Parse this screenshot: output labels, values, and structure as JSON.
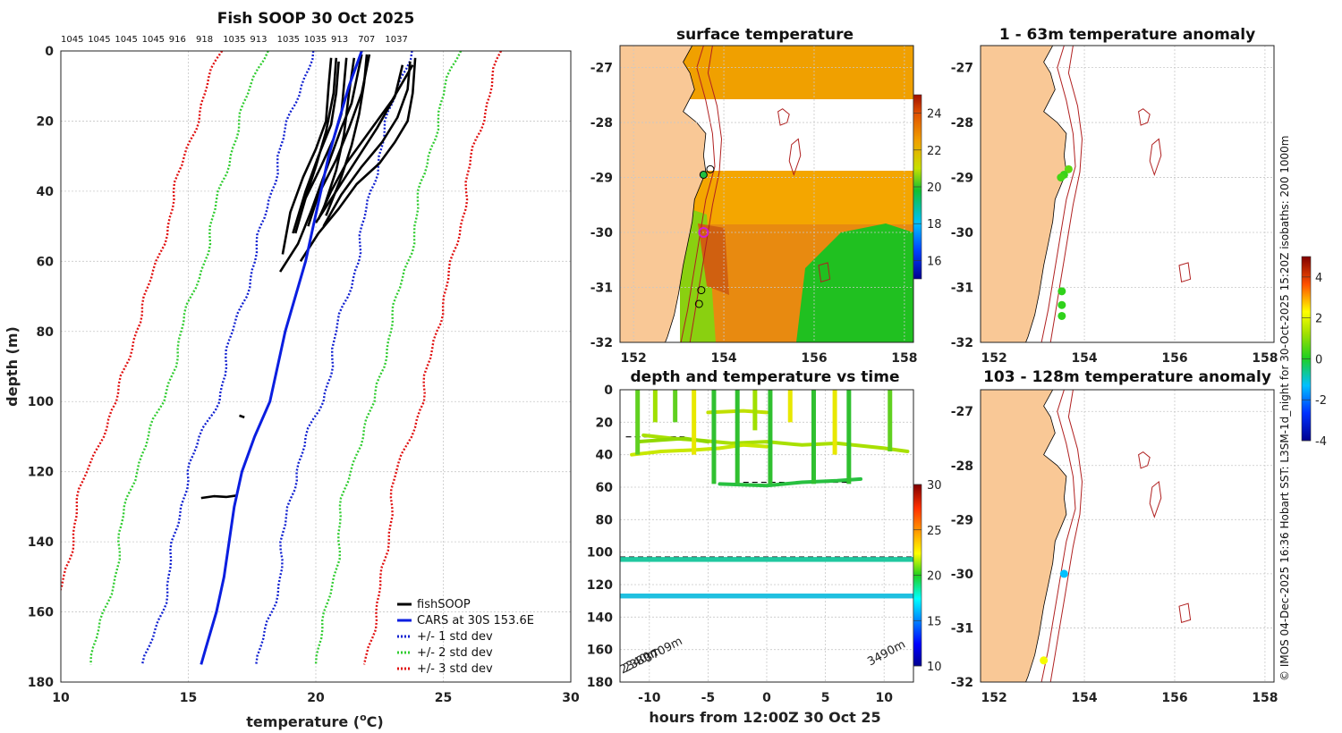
{
  "figure": {
    "credit": "© IMOS 04-Dec-2025 16:36 Hobart SST: L3SM-1d_night for 30-Oct-2025 15:20Z isobaths: 200  1000m",
    "colors": {
      "land": "#f9c896",
      "contour": "#b02020",
      "fish": "#000000",
      "cars": "#0a1ee0",
      "sd1": "#1020d0",
      "sd2": "#30cc30",
      "sd3": "#e01010"
    }
  },
  "chart_data": [
    {
      "id": "profile",
      "type": "line",
      "title": "Fish SOOP 30 Oct 2025",
      "xlabel": "temperature (°C)",
      "xlabel_parts": {
        "pre": "temperature (",
        "sup": "o",
        "post": "C)"
      },
      "ylabel": "depth (m)",
      "xlim": [
        10,
        30
      ],
      "ylim": [
        180,
        0
      ],
      "xticks": [
        10,
        15,
        20,
        25,
        30
      ],
      "yticks": [
        0,
        20,
        40,
        60,
        80,
        100,
        120,
        140,
        160,
        180
      ],
      "top_labels": [
        "1045",
        "1045",
        "1045",
        "1045",
        "916",
        "918",
        "1035",
        "913",
        "1035",
        "1035",
        "913",
        "707",
        "1037"
      ],
      "legend": [
        "fishSOOP",
        "CARS at 30S 153.6E",
        "+/- 1 std dev",
        "+/- 2 std dev",
        "+/- 3 std dev"
      ],
      "cars": {
        "depth": [
          0,
          10,
          20,
          30,
          40,
          50,
          60,
          80,
          100,
          110,
          120,
          130,
          140,
          150,
          160,
          170,
          175
        ],
        "temp": [
          21.8,
          21.3,
          20.9,
          20.5,
          20.2,
          19.9,
          19.6,
          18.8,
          18.2,
          17.6,
          17.1,
          16.8,
          16.6,
          16.4,
          16.1,
          15.7,
          15.5
        ]
      },
      "sd_offsets": [
        1.9,
        3.8,
        5.5
      ],
      "fish": [
        {
          "temp": [
            21.8,
            21.6,
            21.4,
            21.0,
            20.6,
            20.2,
            19.8,
            19.3,
            18.6
          ],
          "depth": [
            1,
            8,
            15,
            22,
            30,
            38,
            46,
            55,
            63
          ]
        },
        {
          "temp": [
            21.2,
            21.1,
            21.0,
            20.7,
            20.2,
            19.6,
            19.2
          ],
          "depth": [
            2,
            10,
            18,
            25,
            33,
            42,
            52
          ]
        },
        {
          "temp": [
            20.6,
            20.5,
            20.4,
            20.0,
            19.5,
            19.0,
            18.7
          ],
          "depth": [
            2,
            10,
            20,
            28,
            36,
            46,
            58
          ]
        },
        {
          "temp": [
            20.9,
            20.8,
            20.6,
            20.1,
            19.6,
            19.1
          ],
          "depth": [
            3,
            12,
            21,
            30,
            40,
            52
          ]
        },
        {
          "temp": [
            23.9,
            23.8,
            23.6,
            23.1,
            22.5,
            21.6,
            20.9,
            20.1,
            19.4
          ],
          "depth": [
            2,
            12,
            20,
            26,
            32,
            38,
            45,
            52,
            60
          ]
        },
        {
          "temp": [
            23.7,
            23.6,
            23.2,
            22.6,
            21.8,
            21.0,
            20.3
          ],
          "depth": [
            3,
            11,
            19,
            26,
            33,
            41,
            50
          ]
        },
        {
          "temp": [
            22.0,
            21.9,
            21.7,
            21.4,
            21.0,
            20.4
          ],
          "depth": [
            1,
            9,
            18,
            27,
            36,
            47
          ]
        },
        {
          "temp": [
            23.4,
            23.1,
            22.4,
            21.6,
            20.8,
            20.0
          ],
          "depth": [
            4,
            13,
            22,
            31,
            40,
            49
          ]
        },
        {
          "temp": [
            21.5,
            21.3,
            21.1,
            20.8,
            20.3
          ],
          "depth": [
            2,
            12,
            24,
            34,
            45
          ]
        },
        {
          "temp": [
            20.8,
            20.7,
            20.4,
            20.0,
            19.5
          ],
          "depth": [
            2,
            12,
            23,
            33,
            44
          ]
        },
        {
          "temp": [
            23.8,
            23.0,
            22.0,
            21.2,
            20.6,
            20.1
          ],
          "depth": [
            4,
            14,
            24,
            32,
            40,
            48
          ]
        },
        {
          "temp": [
            22.1,
            21.8,
            21.3,
            20.8,
            20.1,
            19.7
          ],
          "depth": [
            1,
            12,
            22,
            31,
            41,
            50
          ]
        },
        {
          "temp": [
            17.0,
            17.2
          ],
          "depth": [
            104,
            104.5
          ]
        },
        {
          "temp": [
            15.5,
            16.0,
            16.5,
            16.9
          ],
          "depth": [
            127.5,
            127,
            127.2,
            126.8
          ]
        }
      ]
    },
    {
      "id": "sst",
      "type": "heatmap",
      "title": "surface temperature",
      "xlim": [
        151.7,
        158.2
      ],
      "ylim": [
        -32,
        -26.6
      ],
      "xticks": [
        152,
        154,
        156,
        158
      ],
      "yticks": [
        -27,
        -28,
        -29,
        -30,
        -31,
        -32
      ],
      "colorbar": {
        "range": [
          15,
          25
        ],
        "ticks": [
          16,
          18,
          20,
          22,
          24
        ]
      },
      "markers": [
        [
          153.55,
          -28.95
        ],
        [
          153.7,
          -28.85
        ],
        [
          153.5,
          -31.05
        ],
        [
          153.45,
          -31.3
        ],
        [
          153.55,
          -30.0
        ]
      ]
    },
    {
      "id": "timeseries",
      "type": "scatter",
      "title": "depth and temperature vs time",
      "xlabel": "hours from 12:00Z 30 Oct 25",
      "xlim": [
        -12.5,
        12.5
      ],
      "ylim": [
        180,
        0
      ],
      "xticks": [
        -10,
        -5,
        0,
        5,
        10
      ],
      "yticks": [
        0,
        20,
        40,
        60,
        80,
        100,
        120,
        140,
        160,
        180
      ],
      "colorbar": {
        "range": [
          10,
          30
        ],
        "ticks": [
          10,
          15,
          20,
          25,
          30
        ]
      },
      "bottom_labels": [
        "2340m",
        "2380m",
        "3709m",
        "3490m"
      ],
      "dashed_depths": [
        29,
        57,
        103
      ]
    },
    {
      "id": "anom_shallow",
      "type": "scatter",
      "title": "1 - 63m temperature anomaly",
      "xlim": [
        151.7,
        158.2
      ],
      "ylim": [
        -32,
        -26.6
      ],
      "xticks": [
        152,
        154,
        156,
        158
      ],
      "yticks": [
        -27,
        -28,
        -29,
        -30,
        -31,
        -32
      ],
      "points": [
        {
          "lon": 153.65,
          "lat": -28.85,
          "anom": 0.6
        },
        {
          "lon": 153.55,
          "lat": -28.95,
          "anom": 0.3
        },
        {
          "lon": 153.48,
          "lat": -29.0,
          "anom": 0.4
        },
        {
          "lon": 153.5,
          "lat": -31.07,
          "anom": 0.2
        },
        {
          "lon": 153.5,
          "lat": -31.32,
          "anom": 0.2
        },
        {
          "lon": 153.5,
          "lat": -31.52,
          "anom": 0.2
        }
      ]
    },
    {
      "id": "anom_deep",
      "type": "scatter",
      "title": "103 - 128m temperature anomaly",
      "xlim": [
        151.7,
        158.2
      ],
      "ylim": [
        -32,
        -26.6
      ],
      "xticks": [
        152,
        154,
        156,
        158
      ],
      "yticks": [
        -27,
        -28,
        -29,
        -30,
        -31,
        -32
      ],
      "points": [
        {
          "lon": 153.55,
          "lat": -30.0,
          "anom": -1.3
        },
        {
          "lon": 153.1,
          "lat": -31.6,
          "anom": 2.2
        }
      ],
      "colorbar": {
        "range": [
          -4,
          5
        ],
        "ticks": [
          -4,
          -2,
          0,
          2,
          4
        ]
      }
    }
  ]
}
